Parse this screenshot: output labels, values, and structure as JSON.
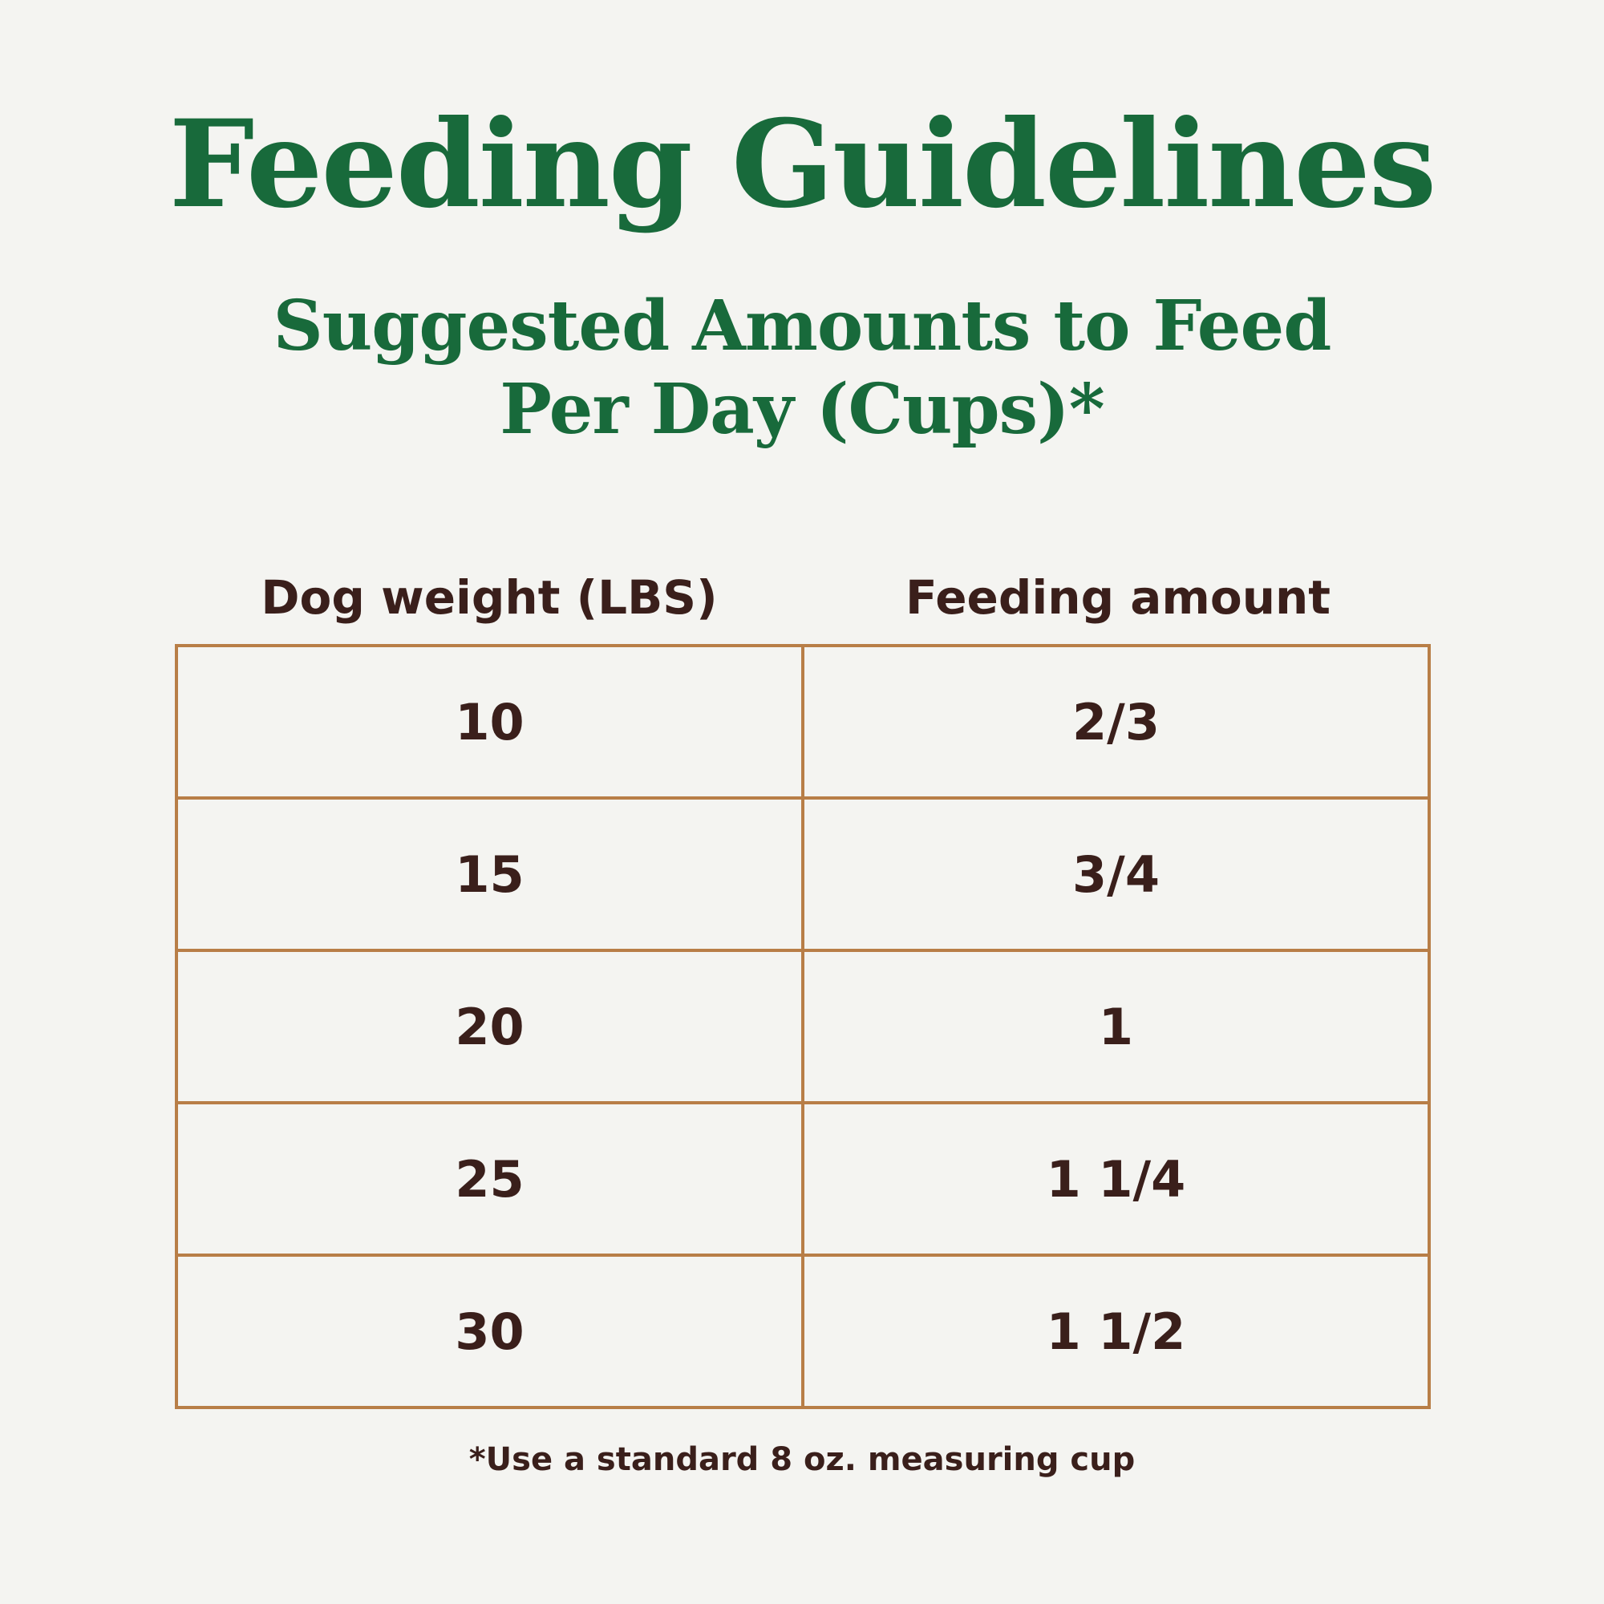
{
  "title": "Feeding Guidelines",
  "subtitle": "Suggested Amounts to Feed Per Day (Cups)*",
  "table": {
    "headers": [
      "Dog weight (LBS)",
      "Feeding amount"
    ],
    "rows": [
      [
        "10",
        "2/3"
      ],
      [
        "15",
        "3/4"
      ],
      [
        "20",
        "1"
      ],
      [
        "25",
        "1 1/4"
      ],
      [
        "30",
        "1 1/2"
      ]
    ]
  },
  "footnote": "*Use a standard 8 oz. measuring cup",
  "colors": {
    "title": "#186a3b",
    "text": "#3a1f1b",
    "border": "#b87e47",
    "background": "#f4f4f1"
  }
}
